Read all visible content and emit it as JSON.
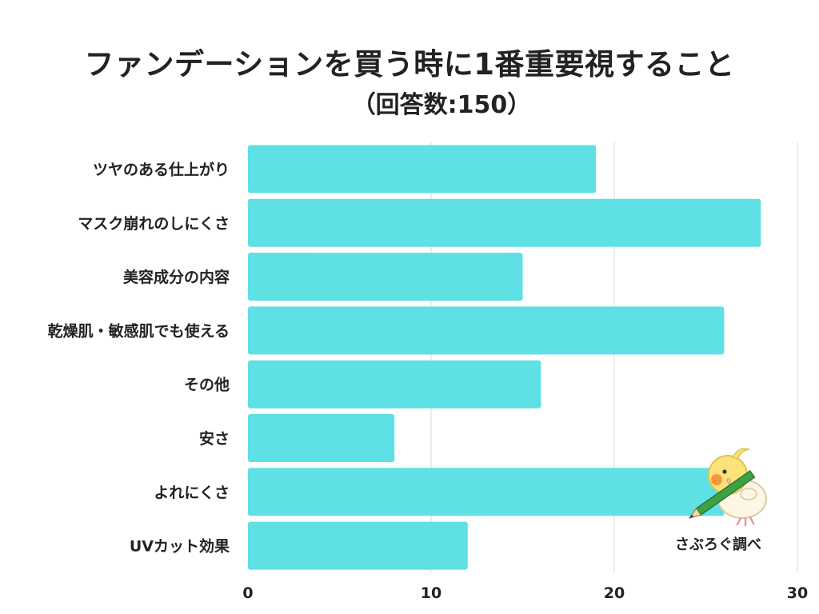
{
  "title": "ファンデーションを買う時に1番重要視すること",
  "subtitle": "（回答数:150）",
  "credit": "さぶろぐ調べ",
  "colors": {
    "bar": "#5fe0e4",
    "grid": "#d9d9d9",
    "text": "#222222"
  },
  "chart_data": {
    "type": "bar",
    "orientation": "horizontal",
    "categories": [
      "ツヤのある仕上がり",
      "マスク崩れのしにくさ",
      "美容成分の内容",
      "乾燥肌・敏感肌でも使える",
      "その他",
      "安さ",
      "よれにくさ",
      "UVカット効果"
    ],
    "values": [
      19,
      28,
      15,
      26,
      16,
      8,
      26,
      12
    ],
    "xlim": [
      0,
      30
    ],
    "xticks": [
      0,
      10,
      20,
      30
    ],
    "xlabel": "",
    "ylabel": "",
    "grid": true,
    "legend": "none"
  }
}
